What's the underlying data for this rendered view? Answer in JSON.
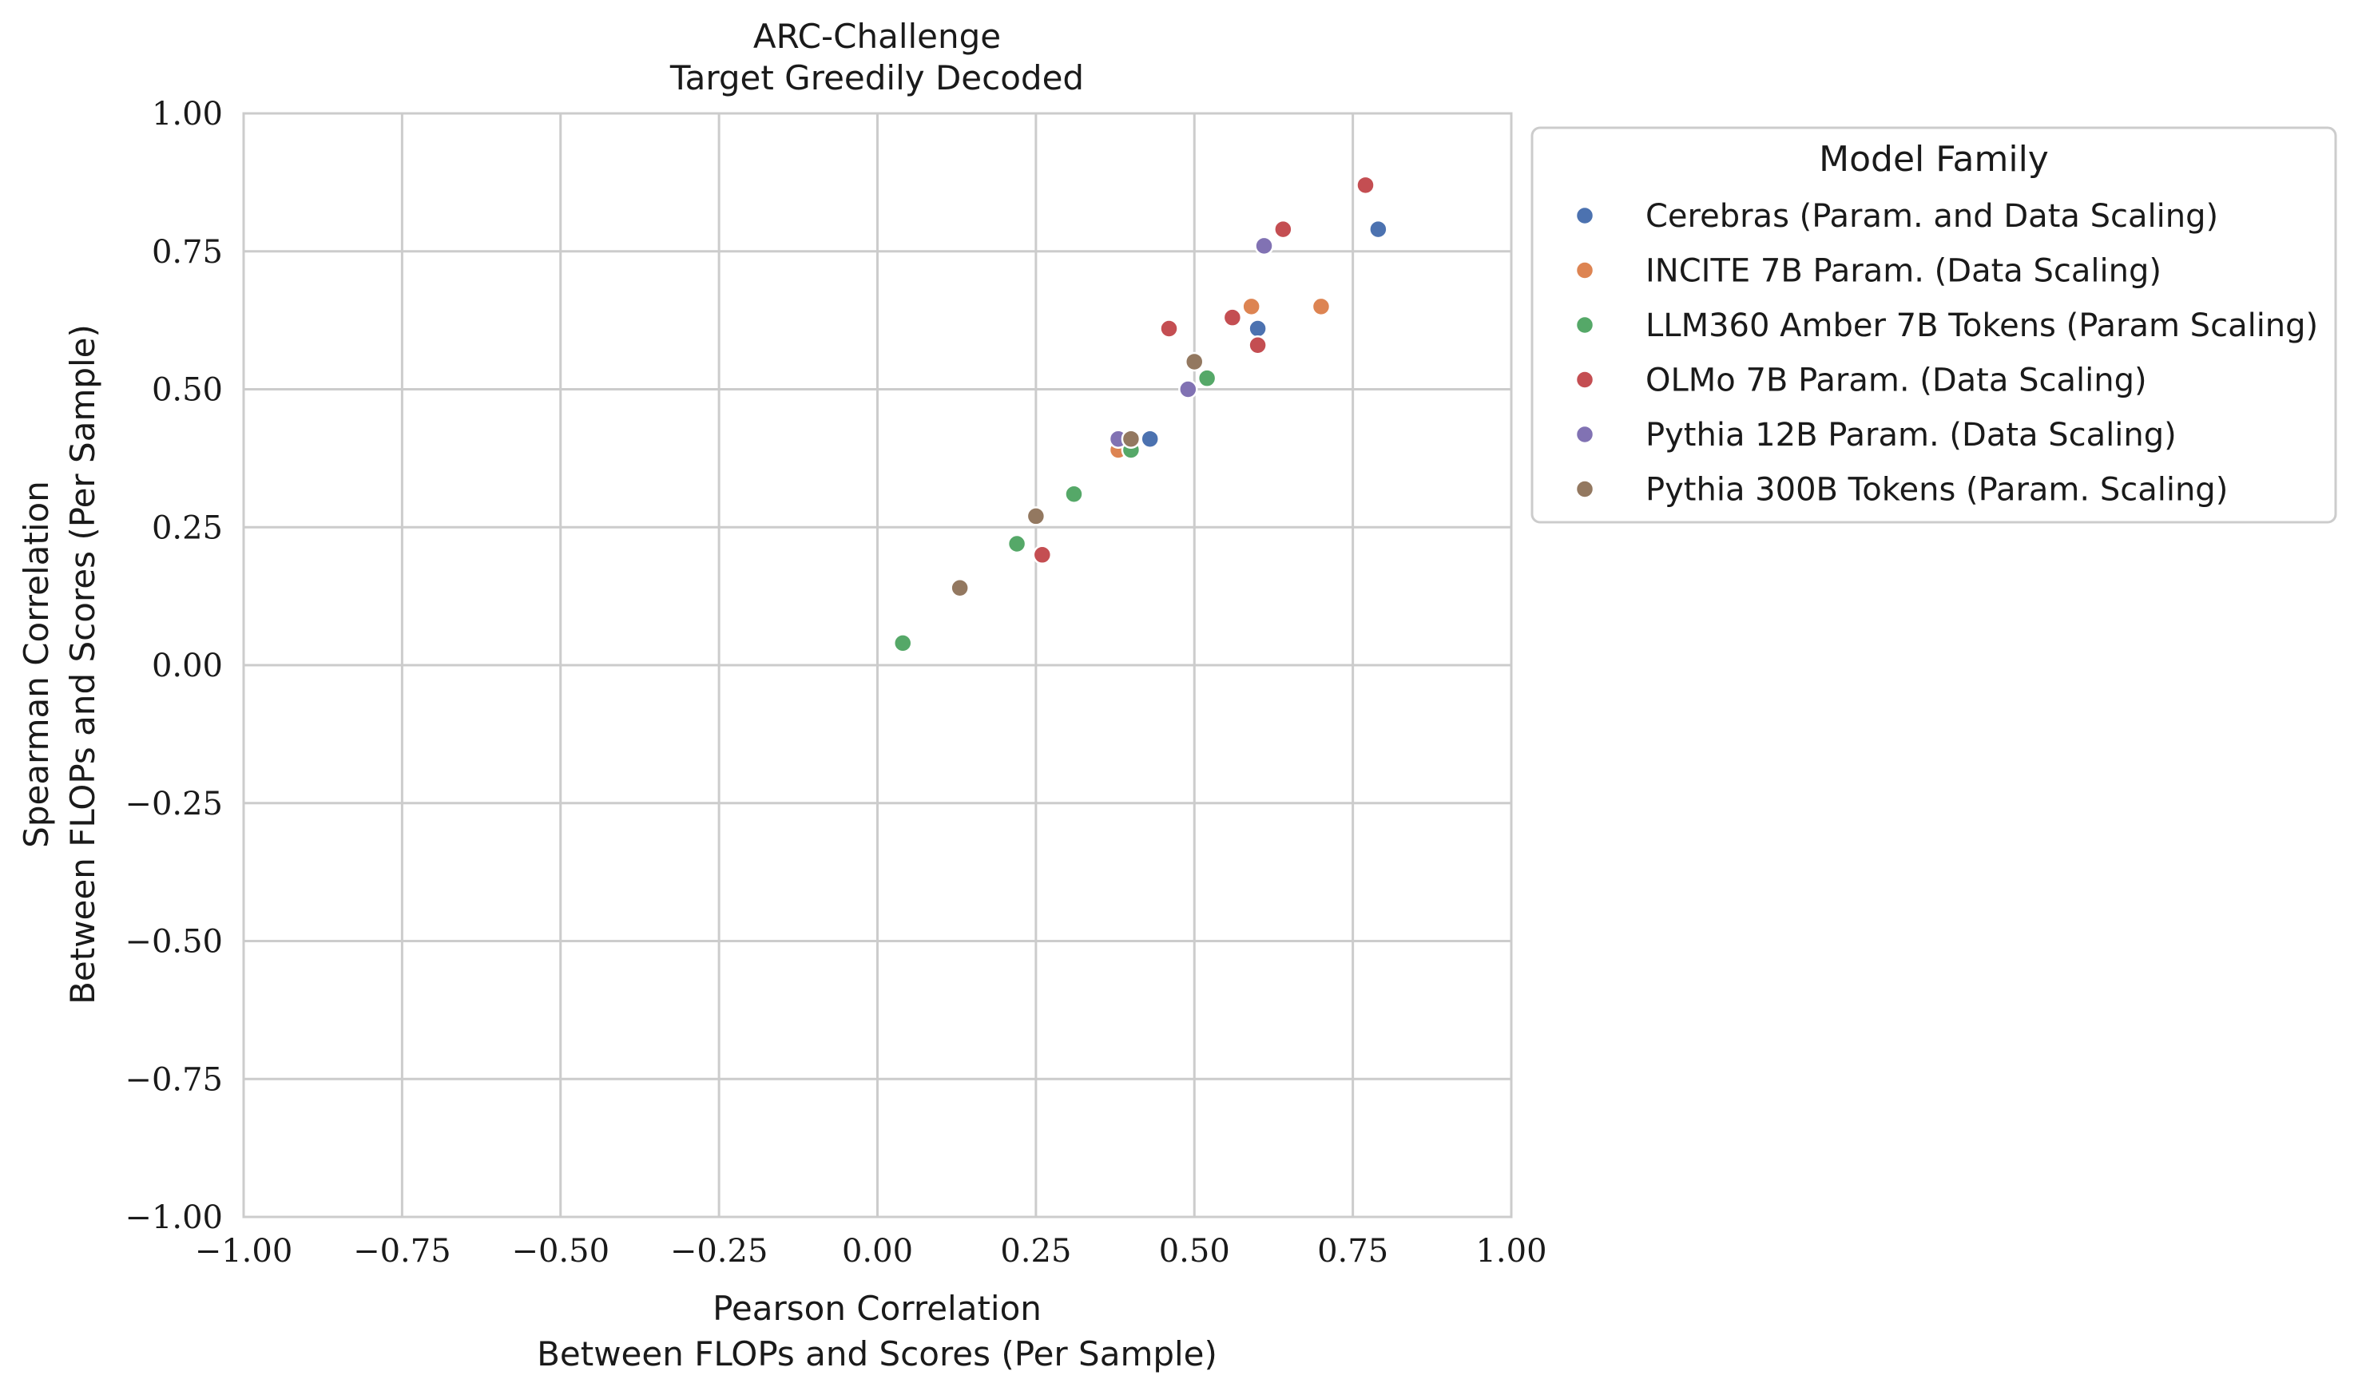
{
  "chart_data": {
    "type": "scatter",
    "title": [
      "ARC-Challenge",
      "Target Greedily Decoded"
    ],
    "xlabel": [
      "Pearson Correlation",
      "Between FLOPs and Scores (Per Sample)"
    ],
    "ylabel": [
      "Spearman Correlation",
      "Between FLOPs and Scores (Per Sample)"
    ],
    "xlim": [
      -1.0,
      1.0
    ],
    "ylim": [
      -1.0,
      1.0
    ],
    "xticks": [
      -1.0,
      -0.75,
      -0.5,
      -0.25,
      0.0,
      0.25,
      0.5,
      0.75,
      1.0
    ],
    "yticks": [
      -1.0,
      -0.75,
      -0.5,
      -0.25,
      0.0,
      0.25,
      0.5,
      0.75,
      1.0
    ],
    "xtick_labels": [
      "−1.00",
      "−0.75",
      "−0.50",
      "−0.25",
      "0.00",
      "0.25",
      "0.50",
      "0.75",
      "1.00"
    ],
    "ytick_labels": [
      "−1.00",
      "−0.75",
      "−0.50",
      "−0.25",
      "0.00",
      "0.25",
      "0.50",
      "0.75",
      "1.00"
    ],
    "grid": true,
    "legend": {
      "title": "Model Family",
      "placement": "outside-right-top"
    },
    "series": [
      {
        "name": "Cerebras (Param. and Data Scaling)",
        "color": "#4c72b0",
        "points": [
          [
            0.79,
            0.79
          ],
          [
            0.6,
            0.61
          ],
          [
            0.43,
            0.41
          ]
        ]
      },
      {
        "name": "INCITE 7B Param. (Data Scaling)",
        "color": "#dd8452",
        "points": [
          [
            0.7,
            0.65
          ],
          [
            0.59,
            0.65
          ],
          [
            0.38,
            0.39
          ]
        ]
      },
      {
        "name": "LLM360 Amber 7B Tokens (Param Scaling)",
        "color": "#55a868",
        "points": [
          [
            0.52,
            0.52
          ],
          [
            0.4,
            0.39
          ],
          [
            0.31,
            0.31
          ],
          [
            0.22,
            0.22
          ],
          [
            0.04,
            0.04
          ]
        ]
      },
      {
        "name": "OLMo 7B Param. (Data Scaling)",
        "color": "#c44e52",
        "points": [
          [
            0.77,
            0.87
          ],
          [
            0.64,
            0.79
          ],
          [
            0.56,
            0.63
          ],
          [
            0.6,
            0.58
          ],
          [
            0.46,
            0.61
          ],
          [
            0.26,
            0.2
          ]
        ]
      },
      {
        "name": "Pythia 12B Param. (Data Scaling)",
        "color": "#8172b3",
        "points": [
          [
            0.61,
            0.76
          ],
          [
            0.49,
            0.5
          ],
          [
            0.38,
            0.41
          ]
        ]
      },
      {
        "name": "Pythia 300B Tokens (Param. Scaling)",
        "color": "#937860",
        "points": [
          [
            0.5,
            0.55
          ],
          [
            0.4,
            0.41
          ],
          [
            0.25,
            0.27
          ],
          [
            0.13,
            0.14
          ]
        ]
      }
    ]
  }
}
